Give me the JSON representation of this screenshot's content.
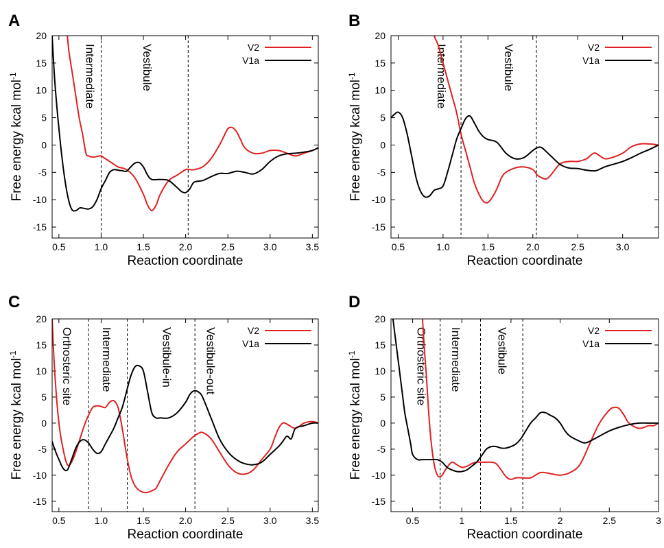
{
  "colors": {
    "V2": "#e02020",
    "V1a": "#000000"
  },
  "chart_data": [
    {
      "panel": "A",
      "type": "line",
      "xlabel": "Reaction coordinate",
      "ylabel": "Free energy kcal mol-1",
      "xlim": [
        0.42,
        3.57
      ],
      "ylim": [
        -17,
        20
      ],
      "xticks": [
        "0.5",
        "1.0",
        "1.5",
        "2.0",
        "2.5",
        "3.0",
        "3.5"
      ],
      "yticks": [
        "20",
        "15",
        "10",
        "5",
        "0",
        "-5",
        "-10",
        "-15"
      ],
      "legend": [
        "V2",
        "V1a"
      ],
      "dividers": [
        1.0,
        2.03
      ],
      "regions": [
        {
          "label": "Intermediate",
          "x": 0.82
        },
        {
          "label": "Vestibule",
          "x": 1.5
        }
      ],
      "series": [
        {
          "name": "V2",
          "x": [
            0.6,
            0.62,
            0.66,
            0.7,
            0.74,
            0.78,
            0.82,
            0.85,
            0.9,
            0.95,
            1.0,
            1.05,
            1.1,
            1.15,
            1.2,
            1.3,
            1.4,
            1.5,
            1.55,
            1.6,
            1.65,
            1.7,
            1.8,
            1.9,
            2.0,
            2.05,
            2.1,
            2.2,
            2.3,
            2.4,
            2.45,
            2.5,
            2.55,
            2.6,
            2.65,
            2.7,
            2.8,
            2.9,
            3.0,
            3.1,
            3.2,
            3.3,
            3.4,
            3.5,
            3.57
          ],
          "y": [
            20,
            17,
            13,
            9,
            5,
            2,
            -1.5,
            -2,
            -2.2,
            -2.1,
            -2,
            -2.5,
            -3,
            -3.5,
            -4,
            -4.5,
            -6,
            -9,
            -11,
            -12,
            -11,
            -9,
            -6.5,
            -5.5,
            -4.5,
            -4.5,
            -4.5,
            -4,
            -2.5,
            0,
            1.5,
            3,
            3.2,
            2.5,
            1,
            -0.5,
            -1.5,
            -1.5,
            -1,
            -1,
            -1.5,
            -2,
            -1.5,
            -1,
            -0.5
          ]
        },
        {
          "name": "V1a",
          "x": [
            0.42,
            0.45,
            0.5,
            0.55,
            0.6,
            0.65,
            0.7,
            0.75,
            0.8,
            0.85,
            0.9,
            0.95,
            1.0,
            1.05,
            1.1,
            1.15,
            1.2,
            1.25,
            1.3,
            1.35,
            1.4,
            1.45,
            1.5,
            1.55,
            1.6,
            1.7,
            1.8,
            1.9,
            1.95,
            2.0,
            2.05,
            2.1,
            2.2,
            2.3,
            2.4,
            2.5,
            2.6,
            2.7,
            2.8,
            2.9,
            3.0,
            3.1,
            3.2,
            3.3,
            3.4,
            3.5,
            3.57
          ],
          "y": [
            20,
            12,
            3,
            -4,
            -9,
            -11.7,
            -12,
            -11.5,
            -11.6,
            -11.7,
            -11.3,
            -10,
            -8,
            -6.5,
            -5,
            -4.5,
            -4.6,
            -4.7,
            -4.8,
            -4,
            -3.3,
            -3.2,
            -4,
            -5.5,
            -6.3,
            -6.3,
            -6.5,
            -7.8,
            -8.5,
            -8.7,
            -8,
            -6.8,
            -6.5,
            -5.8,
            -5.2,
            -5.2,
            -4.8,
            -5,
            -5.3,
            -4.5,
            -3,
            -2,
            -1.6,
            -1.5,
            -1.3,
            -1,
            -0.5
          ]
        }
      ]
    },
    {
      "panel": "B",
      "type": "line",
      "xlabel": "Reaction coordinate",
      "ylabel": "Free energy kcal mol-1",
      "xlim": [
        0.42,
        3.4
      ],
      "ylim": [
        -17,
        20
      ],
      "xticks": [
        "0.5",
        "1.0",
        "1.5",
        "2.0",
        "2.5",
        "3.0"
      ],
      "yticks": [
        "20",
        "15",
        "10",
        "5",
        "0",
        "-5",
        "-10",
        "-15"
      ],
      "legend": [
        "V2",
        "V1a"
      ],
      "dividers": [
        1.2,
        2.04
      ],
      "regions": [
        {
          "label": "Intermediate",
          "x": 0.94
        },
        {
          "label": "Vestibule",
          "x": 1.69
        }
      ],
      "series": [
        {
          "name": "V2",
          "x": [
            0.9,
            0.95,
            1.0,
            1.05,
            1.1,
            1.15,
            1.2,
            1.25,
            1.3,
            1.35,
            1.4,
            1.45,
            1.5,
            1.55,
            1.6,
            1.65,
            1.7,
            1.8,
            1.9,
            2.0,
            2.05,
            2.1,
            2.15,
            2.2,
            2.3,
            2.4,
            2.5,
            2.6,
            2.65,
            2.7,
            2.8,
            2.9,
            3.0,
            3.1,
            3.2,
            3.3,
            3.4
          ],
          "y": [
            20,
            18,
            15,
            12,
            9,
            6,
            2,
            -1,
            -4,
            -7,
            -9,
            -10.3,
            -10.5,
            -9.5,
            -8,
            -6,
            -5,
            -4.2,
            -4,
            -4.5,
            -5.5,
            -6,
            -6.2,
            -5.5,
            -3.5,
            -3,
            -3,
            -2.5,
            -1.8,
            -1.5,
            -2.5,
            -2.2,
            -1.5,
            -0.3,
            0.2,
            0.2,
            0
          ]
        },
        {
          "name": "V1a",
          "x": [
            0.42,
            0.45,
            0.5,
            0.55,
            0.6,
            0.65,
            0.7,
            0.75,
            0.8,
            0.85,
            0.9,
            0.95,
            1.0,
            1.05,
            1.1,
            1.15,
            1.2,
            1.25,
            1.3,
            1.35,
            1.4,
            1.45,
            1.5,
            1.6,
            1.7,
            1.8,
            1.9,
            2.0,
            2.05,
            2.1,
            2.2,
            2.3,
            2.4,
            2.5,
            2.6,
            2.7,
            2.8,
            2.9,
            3.0,
            3.1,
            3.2,
            3.3,
            3.4
          ],
          "y": [
            5.0,
            5.5,
            6,
            5,
            2,
            -2,
            -6,
            -8.5,
            -9.5,
            -9.3,
            -8.3,
            -8,
            -7.5,
            -5,
            -2,
            1,
            3,
            4.8,
            5.3,
            4,
            2.5,
            1.5,
            1,
            0.5,
            -1.5,
            -2.5,
            -2.3,
            -1,
            -0.5,
            -0.5,
            -2,
            -3.5,
            -4.2,
            -4.3,
            -4.6,
            -4.7,
            -4,
            -3.5,
            -3,
            -2.3,
            -1.5,
            -0.8,
            0
          ]
        }
      ]
    },
    {
      "panel": "C",
      "type": "line",
      "xlabel": "Reaction coordinate",
      "ylabel": "Free energy kcal mol-1",
      "xlim": [
        0.42,
        3.57
      ],
      "ylim": [
        -17,
        20
      ],
      "xticks": [
        "0.5",
        "1.0",
        "1.5",
        "2.0",
        "2.5",
        "3.0",
        "3.5"
      ],
      "yticks": [
        "20",
        "15",
        "10",
        "5",
        "0",
        "-5",
        "-10",
        "-15"
      ],
      "legend": [
        "V2",
        "V1a"
      ],
      "dividers": [
        0.85,
        1.31,
        2.11
      ],
      "regions": [
        {
          "label": "Orthosteric site",
          "x": 0.55
        },
        {
          "label": "Intermediate",
          "x": 1.02
        },
        {
          "label": "Vestibule-in",
          "x": 1.73
        },
        {
          "label": "Vestibule-out",
          "x": 2.25
        }
      ],
      "series": [
        {
          "name": "V2",
          "x": [
            0.42,
            0.45,
            0.5,
            0.55,
            0.6,
            0.65,
            0.7,
            0.75,
            0.8,
            0.85,
            0.9,
            0.95,
            1.0,
            1.05,
            1.1,
            1.15,
            1.2,
            1.25,
            1.3,
            1.35,
            1.4,
            1.45,
            1.5,
            1.55,
            1.6,
            1.65,
            1.7,
            1.8,
            1.9,
            2.0,
            2.1,
            2.15,
            2.2,
            2.3,
            2.4,
            2.5,
            2.6,
            2.7,
            2.8,
            2.9,
            3.0,
            3.05,
            3.1,
            3.15,
            3.2,
            3.3,
            3.4,
            3.5,
            3.57
          ],
          "y": [
            20,
            10,
            0,
            -5,
            -8,
            -7.5,
            -5.5,
            -3,
            -0.5,
            1.5,
            3,
            3.3,
            3.2,
            3,
            4,
            4.3,
            3,
            -1,
            -6,
            -10,
            -12,
            -12.9,
            -13.3,
            -13.3,
            -13,
            -12.5,
            -11,
            -8,
            -5.5,
            -4,
            -2.5,
            -2,
            -1.8,
            -3,
            -5.5,
            -8,
            -9.5,
            -9.8,
            -9,
            -7,
            -5,
            -3,
            -1,
            0,
            -0.2,
            -1,
            0,
            0.3,
            0
          ]
        },
        {
          "name": "V1a",
          "x": [
            0.42,
            0.45,
            0.5,
            0.55,
            0.6,
            0.65,
            0.7,
            0.75,
            0.8,
            0.85,
            0.9,
            0.95,
            1.0,
            1.05,
            1.1,
            1.15,
            1.2,
            1.25,
            1.3,
            1.35,
            1.4,
            1.45,
            1.5,
            1.55,
            1.6,
            1.65,
            1.7,
            1.8,
            1.9,
            2.0,
            2.05,
            2.1,
            2.15,
            2.2,
            2.3,
            2.4,
            2.5,
            2.6,
            2.7,
            2.8,
            2.9,
            3.0,
            3.1,
            3.15,
            3.2,
            3.25,
            3.3,
            3.4,
            3.5,
            3.57
          ],
          "y": [
            -3.5,
            -5,
            -7,
            -8.7,
            -9,
            -7,
            -4.8,
            -3.5,
            -3.2,
            -3.8,
            -5,
            -5.8,
            -5.5,
            -4,
            -2.5,
            -1,
            1,
            3,
            6,
            9,
            10.8,
            11,
            10,
            6,
            2,
            1,
            1,
            1,
            2,
            4,
            5.5,
            6.2,
            6,
            5,
            1,
            -3,
            -5.5,
            -7,
            -7.8,
            -8,
            -7.5,
            -6,
            -4.5,
            -3.5,
            -2.5,
            -3,
            -1,
            -0.5,
            0,
            0
          ]
        }
      ]
    },
    {
      "panel": "D",
      "type": "line",
      "xlabel": "Reaction coordinate",
      "ylabel": "Free energy kcal mol-1",
      "xlim": [
        0.28,
        3.0
      ],
      "ylim": [
        -17,
        20
      ],
      "xticks": [
        "0.5",
        "1",
        "1.5",
        "2",
        "2.5",
        "3"
      ],
      "yticks": [
        "20",
        "15",
        "10",
        "5",
        "0",
        "-5",
        "-10",
        "-15"
      ],
      "legend": [
        "V2",
        "V1a"
      ],
      "dividers": [
        0.78,
        1.19,
        1.62
      ],
      "regions": [
        {
          "label": "Orthosteric site",
          "x": 0.55
        },
        {
          "label": "Intermediate",
          "x": 0.9
        },
        {
          "label": "Vestibule",
          "x": 1.37
        }
      ],
      "series": [
        {
          "name": "V2",
          "x": [
            0.6,
            0.62,
            0.64,
            0.66,
            0.68,
            0.7,
            0.72,
            0.74,
            0.76,
            0.78,
            0.8,
            0.85,
            0.9,
            0.95,
            1.0,
            1.05,
            1.1,
            1.15,
            1.2,
            1.25,
            1.3,
            1.35,
            1.4,
            1.45,
            1.5,
            1.55,
            1.6,
            1.7,
            1.8,
            1.9,
            2.0,
            2.1,
            2.2,
            2.3,
            2.4,
            2.5,
            2.55,
            2.6,
            2.65,
            2.7,
            2.8,
            2.9,
            2.95,
            3.0
          ],
          "y": [
            20,
            14,
            9,
            3,
            -2,
            -5.5,
            -8,
            -9.5,
            -10.2,
            -10.3,
            -10,
            -8.5,
            -7.5,
            -8,
            -8.5,
            -8.3,
            -7.8,
            -7.5,
            -7.5,
            -7.5,
            -7.5,
            -7.8,
            -9,
            -10.3,
            -10.8,
            -10.5,
            -10.5,
            -10.5,
            -9.5,
            -9.7,
            -10,
            -9.5,
            -8,
            -4,
            0,
            2.5,
            3,
            2.8,
            1.5,
            0,
            -1,
            -0.5,
            -0.5,
            0
          ]
        },
        {
          "name": "V1a",
          "x": [
            0.3,
            0.32,
            0.34,
            0.36,
            0.38,
            0.4,
            0.42,
            0.45,
            0.48,
            0.5,
            0.55,
            0.6,
            0.65,
            0.7,
            0.75,
            0.8,
            0.85,
            0.9,
            0.95,
            1.0,
            1.05,
            1.1,
            1.15,
            1.2,
            1.25,
            1.3,
            1.35,
            1.4,
            1.45,
            1.5,
            1.55,
            1.6,
            1.65,
            1.7,
            1.75,
            1.8,
            1.85,
            1.9,
            1.95,
            2.0,
            2.05,
            2.1,
            2.2,
            2.25,
            2.3,
            2.4,
            2.5,
            2.6,
            2.7,
            2.8,
            2.9,
            3.0
          ],
          "y": [
            20,
            17,
            14,
            11,
            8,
            5,
            2,
            -1,
            -4,
            -6,
            -7,
            -7,
            -7,
            -7,
            -7,
            -7.5,
            -8.5,
            -9,
            -9.3,
            -9.3,
            -9,
            -8.3,
            -7.5,
            -6.3,
            -5,
            -4.5,
            -4.5,
            -4.8,
            -4.8,
            -4.5,
            -4,
            -3,
            -1.5,
            0,
            1,
            2,
            2,
            1.5,
            1,
            0,
            -1.5,
            -2.5,
            -3.5,
            -3.8,
            -3.5,
            -2.5,
            -1.5,
            -0.8,
            -0.3,
            0,
            0,
            0
          ]
        }
      ]
    }
  ]
}
